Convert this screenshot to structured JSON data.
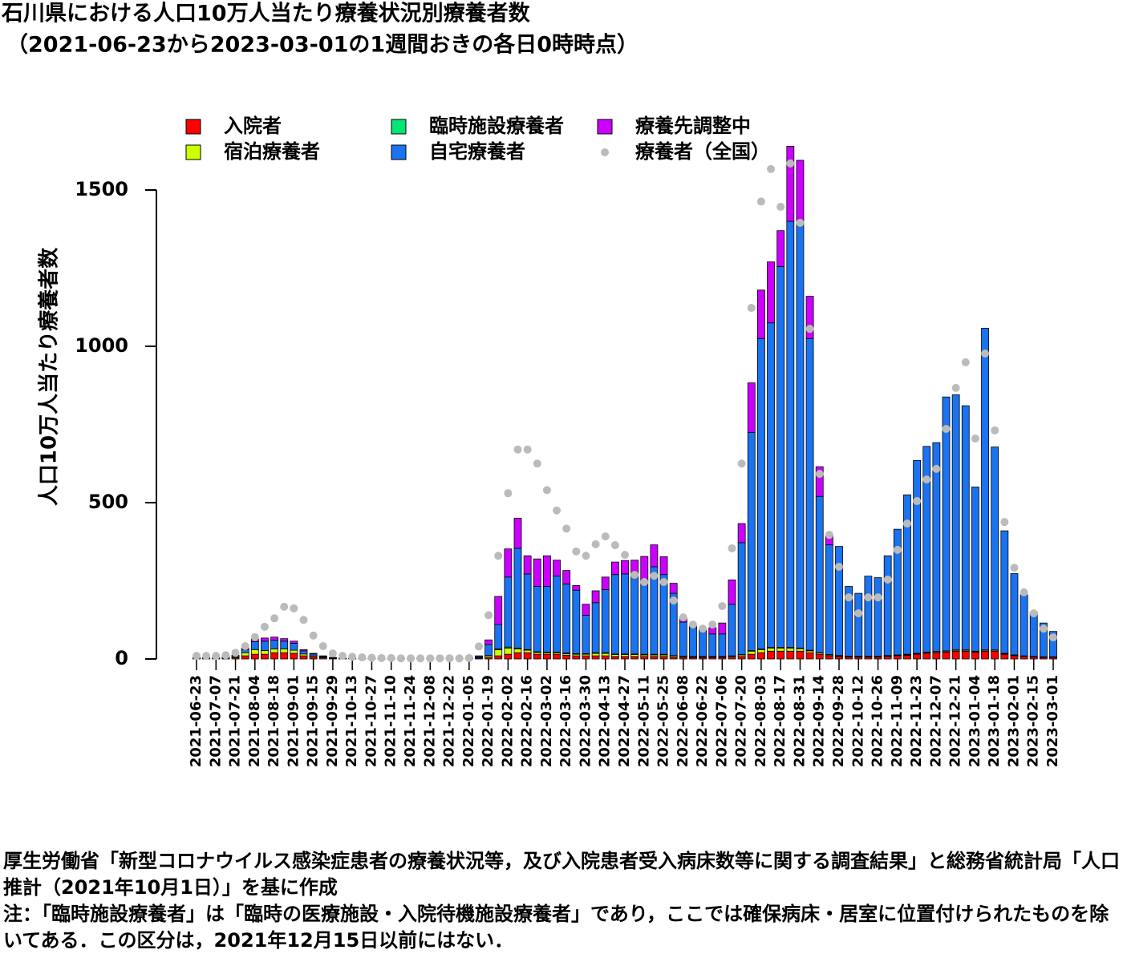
{
  "chart_data": {
    "type": "stacked-bar",
    "title": "石川県における人口10万人当たり療養状況別療養者数",
    "subtitle": "（2021-06-23から2023-03-01の1週間おきの各日0時時点）",
    "y_label": "人口10万人当たり療養者数",
    "categories": [
      "2021-06-23",
      null,
      "2021-07-07",
      null,
      "2021-07-21",
      null,
      "2021-08-04",
      null,
      "2021-08-18",
      null,
      "2021-09-01",
      null,
      "2021-09-15",
      null,
      "2021-09-29",
      null,
      "2021-10-13",
      null,
      "2021-10-27",
      null,
      "2021-11-10",
      null,
      "2021-11-24",
      null,
      "2021-12-08",
      null,
      "2021-12-22",
      null,
      "2022-01-05",
      null,
      "2022-01-19",
      null,
      "2022-02-02",
      null,
      "2022-02-16",
      null,
      "2022-03-02",
      null,
      "2022-03-16",
      null,
      "2022-03-30",
      null,
      "2022-04-13",
      null,
      "2022-04-27",
      null,
      "2022-05-11",
      null,
      "2022-05-25",
      null,
      "2022-06-08",
      null,
      "2022-06-22",
      null,
      "2022-07-06",
      null,
      "2022-07-20",
      null,
      "2022-08-03",
      null,
      "2022-08-17",
      null,
      "2022-08-31",
      null,
      "2022-09-14",
      null,
      "2022-09-28",
      null,
      "2022-10-12",
      null,
      "2022-10-26",
      null,
      "2022-11-09",
      null,
      "2022-11-23",
      null,
      "2022-12-07",
      null,
      "2022-12-21",
      null,
      "2023-01-04",
      null,
      "2023-01-18",
      null,
      "2023-02-01",
      null,
      "2023-02-15",
      null,
      "2023-03-01"
    ],
    "series": [
      {
        "name": "入院者",
        "color": "#ff0000",
        "values": [
          1,
          1,
          1,
          2,
          4,
          10,
          15,
          15,
          20,
          20,
          18,
          10,
          7,
          4,
          2,
          2,
          1,
          1,
          1,
          1,
          1,
          1,
          1,
          1,
          1,
          1,
          1,
          1,
          1,
          3,
          5,
          10,
          15,
          20,
          20,
          15,
          15,
          15,
          12,
          10,
          10,
          10,
          10,
          8,
          8,
          8,
          8,
          8,
          8,
          6,
          5,
          5,
          5,
          5,
          5,
          6,
          8,
          15,
          20,
          25,
          25,
          25,
          25,
          20,
          15,
          10,
          8,
          6,
          6,
          6,
          6,
          8,
          10,
          12,
          15,
          18,
          20,
          22,
          25,
          25,
          22,
          25,
          25,
          15,
          10,
          8,
          6,
          5,
          5
        ]
      },
      {
        "name": "宿泊療養者",
        "color": "#ccff00",
        "values": [
          1,
          1,
          1,
          1,
          3,
          10,
          15,
          12,
          12,
          12,
          10,
          6,
          3,
          2,
          1,
          0,
          0,
          0,
          0,
          0,
          0,
          0,
          0,
          0,
          0,
          0,
          0,
          0,
          0,
          2,
          5,
          20,
          20,
          12,
          8,
          6,
          5,
          5,
          5,
          5,
          5,
          8,
          8,
          6,
          6,
          6,
          5,
          5,
          5,
          4,
          3,
          2,
          2,
          2,
          2,
          3,
          5,
          10,
          10,
          10,
          10,
          10,
          8,
          6,
          4,
          3,
          2,
          2,
          2,
          2,
          2,
          2,
          2,
          2,
          2,
          3,
          3,
          3,
          3,
          3,
          2,
          3,
          3,
          2,
          2,
          1,
          1,
          1,
          1
        ]
      },
      {
        "name": "臨時施設療養者",
        "color": "#00e676",
        "values": [
          null,
          null,
          null,
          null,
          null,
          null,
          null,
          null,
          null,
          null,
          null,
          null,
          null,
          null,
          null,
          null,
          null,
          null,
          null,
          null,
          null,
          null,
          null,
          null,
          null,
          null,
          0,
          0,
          0,
          0,
          1,
          2,
          3,
          3,
          2,
          2,
          2,
          2,
          2,
          2,
          2,
          2,
          2,
          2,
          2,
          2,
          2,
          2,
          2,
          1,
          1,
          1,
          1,
          1,
          1,
          1,
          1,
          2,
          2,
          2,
          2,
          2,
          2,
          2,
          1,
          1,
          1,
          1,
          1,
          1,
          1,
          1,
          1,
          1,
          1,
          1,
          1,
          1,
          1,
          1,
          1,
          1,
          1,
          1,
          1,
          1,
          1,
          1,
          1
        ]
      },
      {
        "name": "自宅療養者",
        "color": "#1a73f0",
        "values": [
          2,
          2,
          2,
          3,
          3,
          10,
          25,
          30,
          28,
          25,
          22,
          10,
          6,
          3,
          1,
          1,
          1,
          1,
          1,
          1,
          1,
          1,
          1,
          1,
          1,
          1,
          1,
          1,
          1,
          4,
          35,
          78,
          224,
          319,
          242,
          209,
          210,
          243,
          221,
          203,
          123,
          160,
          202,
          254,
          256,
          249,
          235,
          280,
          255,
          199,
          109,
          92,
          82,
          72,
          72,
          165,
          358,
          698,
          993,
          1038,
          1218,
          1363,
          1360,
          997,
          500,
          351,
          349,
          223,
          201,
          256,
          251,
          319,
          402,
          510,
          617,
          658,
          668,
          812,
          816,
          781,
          525,
          1029,
          649,
          392,
          260,
          195,
          142,
          108,
          81
        ]
      },
      {
        "name": "療養先調整中",
        "color": "#cc00ff",
        "values": [
          1,
          1,
          1,
          2,
          2,
          5,
          9,
          10,
          10,
          8,
          7,
          4,
          2,
          1,
          1,
          0,
          0,
          0,
          0,
          0,
          0,
          0,
          0,
          0,
          0,
          0,
          0,
          0,
          1,
          1,
          15,
          90,
          90,
          96,
          58,
          88,
          98,
          51,
          43,
          15,
          35,
          38,
          40,
          40,
          43,
          51,
          78,
          70,
          57,
          32,
          12,
          5,
          5,
          20,
          35,
          78,
          61,
          158,
          155,
          195,
          115,
          240,
          200,
          135,
          95,
          30,
          0,
          0,
          0,
          0,
          0,
          0,
          0,
          0,
          0,
          0,
          0,
          0,
          0,
          0,
          0,
          0,
          0,
          0,
          0,
          0,
          0,
          0,
          0
        ]
      }
    ],
    "points": {
      "name": "療養者（全国）",
      "color": "#bbbbbb",
      "values": [
        10,
        10,
        10,
        12,
        20,
        41,
        70,
        103,
        130,
        167,
        162,
        125,
        75,
        41,
        18,
        10,
        7,
        5,
        4,
        3,
        3,
        2,
        2,
        2,
        2,
        2,
        2,
        2,
        3,
        40,
        140,
        330,
        530,
        670,
        670,
        625,
        540,
        475,
        417,
        344,
        330,
        367,
        392,
        364,
        333,
        269,
        246,
        266,
        246,
        187,
        133,
        110,
        97,
        110,
        169,
        354,
        625,
        1123,
        1463,
        1567,
        1446,
        1585,
        1395,
        1056,
        592,
        397,
        295,
        197,
        146,
        197,
        197,
        254,
        349,
        433,
        505,
        574,
        608,
        736,
        867,
        949,
        705,
        977,
        731,
        438,
        292,
        213,
        146,
        97,
        69
      ]
    },
    "ylim": [
      0,
      1650
    ],
    "yticks": [
      0,
      500,
      1000,
      1500
    ],
    "notes": [
      "厚生労働省「新型コロナウイルス感染症患者の療養状況等，及び入院患者受入病床数等に関する調査結果」と総務省統計局「人口推計（2021年10月1日）」を基に作成",
      "注：「臨時施設療養者」は「臨時の医療施設・入院待機施設療養者」であり，ここでは確保病床・居室に位置付けられたものを除いてある．この区分は，2021年12月15日以前にはない．"
    ]
  }
}
